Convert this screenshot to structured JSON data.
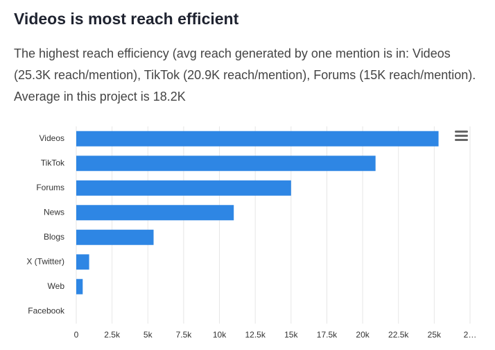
{
  "chart_data": {
    "type": "bar",
    "orientation": "horizontal",
    "title": "Videos is most reach efficient",
    "subtitle": "The highest reach efficiency (avg reach generated by one mention is in: Videos (25.3K reach/mention), TikTok (20.9K reach/mention), Forums (15K reach/mention). Average in this project is 18.2K",
    "categories": [
      "Videos",
      "TikTok",
      "Forums",
      "News",
      "Blogs",
      "X (Twitter)",
      "Web",
      "Facebook"
    ],
    "values": [
      25300,
      20900,
      15000,
      11000,
      5400,
      900,
      450,
      0
    ],
    "color": "#2e86e4",
    "xlim": [
      0,
      27500
    ],
    "xticks": [
      0,
      {
        "value": 2500,
        "label": "2.5k"
      },
      {
        "value": 5000,
        "label": "5k"
      },
      {
        "value": 7500,
        "label": "7.5k"
      },
      {
        "value": 10000,
        "label": "10k"
      },
      {
        "value": 12500,
        "label": "12.5k"
      },
      {
        "value": 15000,
        "label": "15k"
      },
      {
        "value": 17500,
        "label": "17.5k"
      },
      {
        "value": 20000,
        "label": "20k"
      },
      {
        "value": 22500,
        "label": "22.5k"
      },
      {
        "value": 25000,
        "label": "25k"
      },
      {
        "value": 27500,
        "label": "2…"
      }
    ],
    "grid": true
  }
}
